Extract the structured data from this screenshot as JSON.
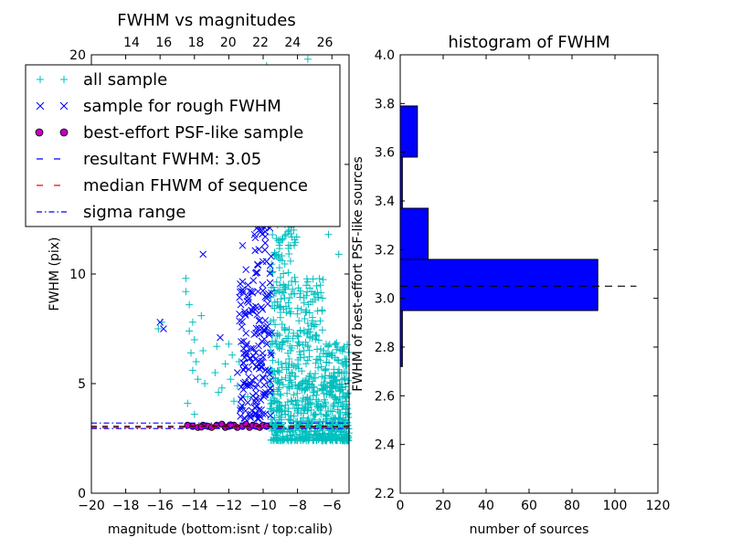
{
  "colors": {
    "all_sample": "#00bfbf",
    "rough_sample": "#0000ff",
    "best_sample_face": "#bf00bf",
    "bar_fill": "#0000ff",
    "median_line": "#ff0000",
    "sigma_line": "#0000ff"
  },
  "chart_data": [
    {
      "type": "scatter",
      "title": "FWHM vs magnitudes",
      "xlabel": "magnitude (bottom:isnt / top:calib)",
      "ylabel": "FWHM (pix)",
      "xlim": [
        -20,
        -5
      ],
      "ylim": [
        0,
        20
      ],
      "top_xlim": [
        11.5,
        27.5
      ],
      "x_ticks": [
        "−20",
        "−18",
        "−16",
        "−14",
        "−12",
        "−10",
        "−8",
        "−6"
      ],
      "x_tick_values": [
        -20,
        -18,
        -16,
        -14,
        -12,
        -10,
        -8,
        -6
      ],
      "top_ticks": [
        "14",
        "16",
        "18",
        "20",
        "22",
        "24",
        "26"
      ],
      "top_tick_values": [
        14,
        16,
        18,
        20,
        22,
        24,
        26
      ],
      "y_ticks": [
        "0",
        "5",
        "10",
        "15",
        "20"
      ],
      "y_tick_values": [
        0,
        5,
        10,
        15,
        20
      ],
      "resultant_fwhm": 3.05,
      "median_fwhm": 3.0,
      "sigma_range": [
        2.95,
        3.2
      ],
      "legend_position": "upper-left",
      "legend": [
        {
          "label": "all sample",
          "marker": "plus"
        },
        {
          "label": "sample for rough FWHM",
          "marker": "x"
        },
        {
          "label": "best-effort PSF-like sample",
          "marker": "circle"
        },
        {
          "label": "resultant FWHM: 3.05",
          "marker": "dash"
        },
        {
          "label": "median FHWM of sequence",
          "marker": "dash-red"
        },
        {
          "label": "sigma range",
          "marker": "dashdot"
        }
      ],
      "series": [
        {
          "name": "all sample",
          "marker": "+",
          "points": [
            [
              -14.5,
              9.8
            ],
            [
              -14.5,
              9.2
            ],
            [
              -14.3,
              8.6
            ],
            [
              -14.1,
              7.8
            ],
            [
              -14.3,
              7.4
            ],
            [
              -14.0,
              7.0
            ],
            [
              -14.2,
              6.4
            ],
            [
              -13.9,
              6.0
            ],
            [
              -14.1,
              5.6
            ],
            [
              -13.8,
              5.2
            ],
            [
              -14.4,
              4.1
            ],
            [
              -14.0,
              3.6
            ],
            [
              -13.6,
              8.1
            ],
            [
              -13.5,
              6.5
            ],
            [
              -13.4,
              5.0
            ],
            [
              -16.1,
              7.5
            ],
            [
              -15.9,
              7.8
            ],
            [
              -12.7,
              6.7
            ],
            [
              -12.8,
              5.5
            ],
            [
              -12.6,
              4.6
            ],
            [
              -12.4,
              4.8
            ],
            [
              -12.2,
              5.9
            ],
            [
              -12.0,
              6.8
            ],
            [
              -11.9,
              5.2
            ],
            [
              -11.8,
              6.3
            ],
            [
              -11.7,
              4.2
            ],
            [
              -11.5,
              4.9
            ],
            [
              -11.4,
              6.0
            ],
            [
              -11.2,
              3.9
            ],
            [
              -10.9,
              4.4
            ],
            [
              -9.8,
              19.5
            ],
            [
              -9.5,
              18.0
            ],
            [
              -9.2,
              17.2
            ],
            [
              -8.9,
              18.6
            ],
            [
              -8.6,
              16.9
            ],
            [
              -8.2,
              16.5
            ],
            [
              -7.8,
              17.4
            ],
            [
              -7.4,
              19.8
            ],
            [
              -7.1,
              19.2
            ],
            [
              -6.8,
              16.3
            ],
            [
              -6.4,
              15.7
            ],
            [
              -8.3,
              14.2
            ],
            [
              -7.7,
              13.6
            ],
            [
              -6.9,
              12.4
            ],
            [
              -6.2,
              11.8
            ],
            [
              -5.6,
              10.9
            ]
          ]
        },
        {
          "name": "sample for rough FWHM",
          "marker": "x",
          "points": [
            [
              -16.0,
              7.8
            ],
            [
              -15.8,
              7.5
            ],
            [
              -13.5,
              10.9
            ],
            [
              -12.5,
              7.1
            ],
            [
              -11.2,
              11.3
            ],
            [
              -11.0,
              10.2
            ],
            [
              -10.8,
              12.6
            ],
            [
              -10.5,
              11.8
            ],
            [
              -10.3,
              10.4
            ],
            [
              -10.1,
              12.2
            ],
            [
              -9.9,
              11.1
            ],
            [
              -9.7,
              13.2
            ],
            [
              -11.3,
              8.6
            ],
            [
              -11.0,
              7.3
            ],
            [
              -10.7,
              6.6
            ],
            [
              -10.6,
              8.3
            ],
            [
              -10.4,
              5.8
            ],
            [
              -10.2,
              7.9
            ],
            [
              -10.0,
              6.2
            ],
            [
              -9.8,
              8.9
            ],
            [
              -11.5,
              5.5
            ],
            [
              -11.2,
              4.4
            ],
            [
              -10.9,
              4.9
            ],
            [
              -10.5,
              4.2
            ],
            [
              -10.1,
              3.8
            ],
            [
              -9.7,
              5.6
            ],
            [
              -9.6,
              4.6
            ],
            [
              -9.6,
              9.6
            ],
            [
              -10.3,
              9.2
            ],
            [
              -10.7,
              3.6
            ]
          ]
        },
        {
          "name": "best-effort PSF-like sample",
          "marker": "circle",
          "points": [
            [
              -14.4,
              3.1
            ],
            [
              -14.1,
              3.05
            ],
            [
              -13.8,
              3.0
            ],
            [
              -13.5,
              3.1
            ],
            [
              -13.2,
              3.05
            ],
            [
              -13.0,
              3.0
            ],
            [
              -12.7,
              3.1
            ],
            [
              -12.4,
              3.15
            ],
            [
              -12.2,
              3.0
            ],
            [
              -12.0,
              3.05
            ],
            [
              -11.7,
              3.1
            ],
            [
              -11.5,
              3.0
            ],
            [
              -11.2,
              3.05
            ],
            [
              -11.0,
              3.15
            ],
            [
              -10.8,
              3.0
            ],
            [
              -10.6,
              3.1
            ],
            [
              -10.4,
              3.05
            ],
            [
              -10.2,
              3.0
            ],
            [
              -10.0,
              3.1
            ],
            [
              -9.8,
              3.05
            ],
            [
              -13.6,
              3.02
            ],
            [
              -11.9,
              3.12
            ]
          ]
        }
      ]
    },
    {
      "type": "bar",
      "orientation": "horizontal",
      "title": "histogram of FWHM",
      "xlabel": "number of sources",
      "ylabel": "FWHM of best-effort PSF-like sources",
      "xlim": [
        0,
        120
      ],
      "ylim": [
        2.2,
        4.0
      ],
      "x_ticks": [
        "0",
        "20",
        "40",
        "60",
        "80",
        "100",
        "120"
      ],
      "x_tick_values": [
        0,
        20,
        40,
        60,
        80,
        100,
        120
      ],
      "y_ticks": [
        "2.2",
        "2.4",
        "2.6",
        "2.8",
        "3.0",
        "3.2",
        "3.4",
        "3.6",
        "3.8",
        "4.0"
      ],
      "y_tick_values": [
        2.2,
        2.4,
        2.6,
        2.8,
        3.0,
        3.2,
        3.4,
        3.6,
        3.8,
        4.0
      ],
      "bins": [
        [
          2.72,
          2.95,
          1
        ],
        [
          2.95,
          3.16,
          92
        ],
        [
          3.16,
          3.37,
          13
        ],
        [
          3.37,
          3.58,
          1
        ],
        [
          3.58,
          3.79,
          8
        ]
      ],
      "reference_line": 3.05
    }
  ]
}
